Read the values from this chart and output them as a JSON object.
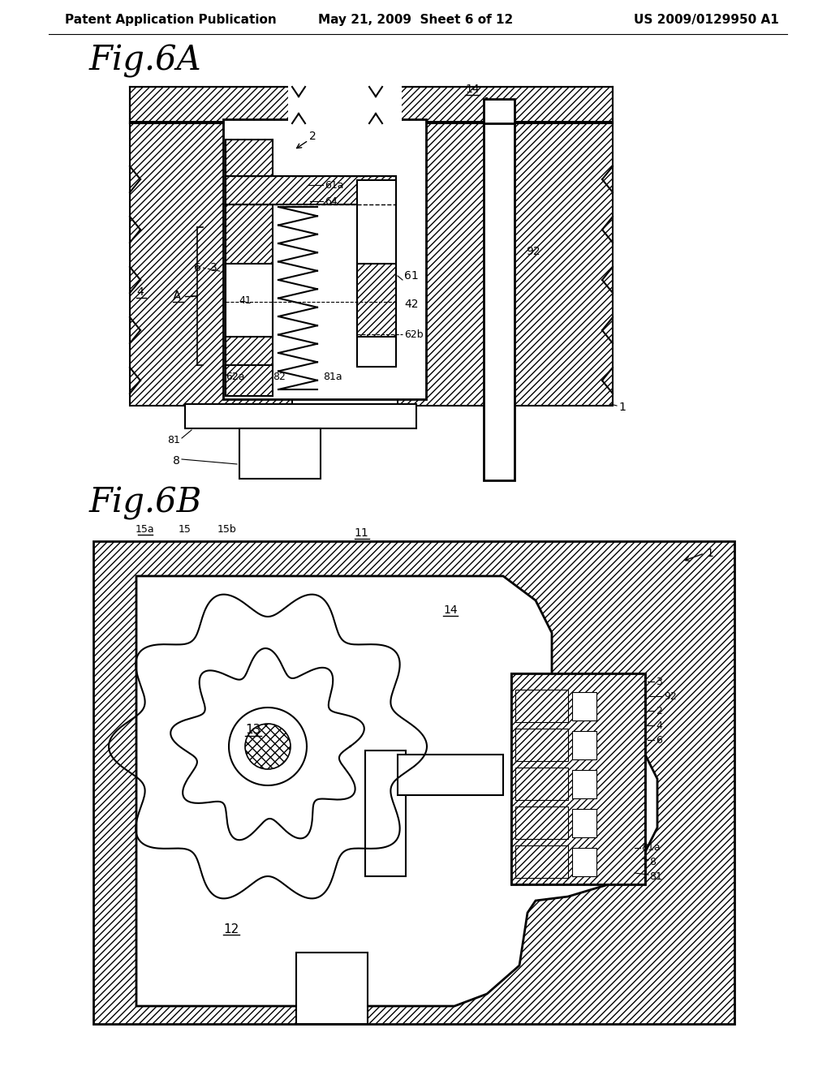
{
  "background_color": "#ffffff",
  "header_left": "Patent Application Publication",
  "header_center": "May 21, 2009  Sheet 6 of 12",
  "header_right": "US 2009/0129950 A1",
  "fig6a_label": "Fig.6A",
  "fig6b_label": "Fig.6B",
  "hatch_color": "#000000",
  "line_color": "#000000",
  "text_color": "#000000"
}
